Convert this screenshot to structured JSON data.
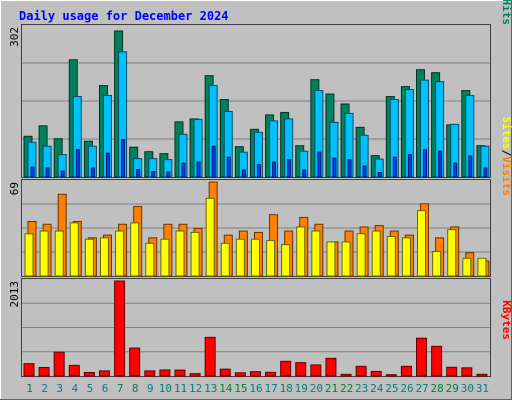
{
  "chart_data": {
    "type": "bar",
    "title": "Daily usage for December 2024",
    "categories": [
      "1",
      "2",
      "3",
      "4",
      "5",
      "6",
      "7",
      "8",
      "9",
      "10",
      "11",
      "12",
      "13",
      "14",
      "15",
      "16",
      "17",
      "18",
      "19",
      "20",
      "21",
      "22",
      "23",
      "24",
      "25",
      "26",
      "27",
      "28",
      "29",
      "30",
      "31"
    ],
    "weekend_days": [
      "1",
      "7",
      "8",
      "14",
      "15",
      "21",
      "22",
      "28",
      "29"
    ],
    "x_labels": [
      "1",
      "2",
      "3",
      "4",
      "5",
      "6",
      "7",
      "8",
      "9",
      "10",
      "11",
      "12",
      "13",
      "14",
      "15",
      "16",
      "17",
      "18",
      "19",
      "20",
      "21",
      "22",
      "23",
      "24",
      "25",
      "26",
      "27",
      "28",
      "29",
      "30",
      "31"
    ],
    "panels": [
      {
        "id": "requests",
        "max_label": "302",
        "ylim": [
          0,
          302
        ],
        "series": [
          {
            "name": "Hits",
            "color": "#00805c",
            "values": [
              82,
              103,
              77,
              236,
              72,
              184,
              294,
              60,
              51,
              47,
              111,
              117,
              204,
              156,
              61,
              96,
              125,
              130,
              63,
              196,
              167,
              147,
              100,
              43,
              162,
              182,
              216,
              210,
              105,
              174,
              63
            ]
          },
          {
            "name": "Files",
            "color": "#00c0ff",
            "values": [
              70,
              62,
              45,
              162,
              62,
              164,
              252,
              37,
              37,
              35,
              86,
              116,
              184,
              132,
              50,
              90,
              113,
              117,
              52,
              174,
              110,
              128,
              84,
              36,
              156,
              176,
              195,
              192,
              106,
              164,
              62
            ]
          },
          {
            "name": "Pages",
            "color": "#0040ff",
            "values": [
              20,
              18,
              12,
              55,
              18,
              48,
              75,
              15,
              11,
              10,
              28,
              30,
              62,
              40,
              14,
              25,
              30,
              35,
              14,
              50,
              38,
              35,
              22,
              9,
              40,
              45,
              55,
              52,
              28,
              42,
              18
            ]
          }
        ]
      },
      {
        "id": "visits",
        "max_label": "69",
        "ylim": [
          0,
          69
        ],
        "series": [
          {
            "name": "Visits",
            "color": "#ff8000",
            "values": [
              40,
              38,
              60,
              40,
              28,
              30,
              38,
              51,
              28,
              38,
              38,
              35,
              69,
              30,
              33,
              32,
              45,
              33,
              43,
              38,
              25,
              33,
              36,
              37,
              33,
              30,
              53,
              28,
              36,
              17,
              11
            ]
          },
          {
            "name": "Sites",
            "color": "#ffff00",
            "values": [
              31,
              33,
              33,
              39,
              27,
              28,
              33,
              39,
              24,
              27,
              33,
              32,
              57,
              24,
              27,
              27,
              26,
              23,
              36,
              33,
              25,
              25,
              31,
              33,
              29,
              28,
              48,
              18,
              34,
              13,
              13
            ]
          }
        ]
      },
      {
        "id": "kbytes",
        "max_label": "2013",
        "ylim": [
          0,
          2013
        ],
        "series": [
          {
            "name": "KBytes",
            "color": "#ff0000",
            "values": [
              262,
              180,
              504,
              225,
              74,
              108,
              2013,
              592,
              108,
              128,
              125,
              50,
              819,
              145,
              68,
              92,
              78,
              311,
              283,
              235,
              374,
              35,
              205,
              97,
              28,
              205,
              801,
              628,
              185,
              173,
              36
            ]
          }
        ]
      }
    ],
    "legend_right": [
      "Pages",
      "/",
      "Files",
      "/",
      "Hits",
      "Sites",
      "/",
      "Visits",
      "KBytes"
    ]
  },
  "colors": {
    "background": "#c0c0c0",
    "title": "#0000ff",
    "grid": "#808080",
    "weekday_label": "#008080",
    "weekend_label": "#008040"
  }
}
